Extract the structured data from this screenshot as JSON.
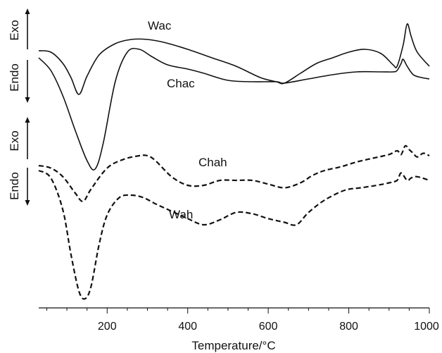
{
  "chart_data": {
    "type": "line",
    "xlabel": "Temperature/°C",
    "ylabel": "",
    "xlim": [
      30,
      1000
    ],
    "xticks": [
      200,
      400,
      600,
      800,
      1000
    ],
    "direction_labels": {
      "upper": {
        "exo": "Exo",
        "endo": "Endo"
      },
      "lower": {
        "exo": "Exo",
        "endo": "Endo"
      }
    },
    "series": [
      {
        "name": "Wac",
        "style": "solid",
        "panel": "upper",
        "x": [
          30,
          60,
          90,
          110,
          130,
          150,
          180,
          220,
          260,
          300,
          340,
          400,
          460,
          520,
          580,
          620,
          640,
          680,
          720,
          760,
          800,
          840,
          880,
          910,
          920,
          935,
          945,
          955,
          970,
          1000
        ],
        "y": [
          1.0,
          0.95,
          0.55,
          0.05,
          -0.55,
          0.1,
          0.85,
          1.25,
          1.4,
          1.4,
          1.3,
          1.05,
          0.75,
          0.45,
          0.05,
          -0.1,
          -0.15,
          0.2,
          0.55,
          0.75,
          0.95,
          1.05,
          0.9,
          0.5,
          0.45,
          1.2,
          1.95,
          1.5,
          0.95,
          0.45
        ]
      },
      {
        "name": "Chac",
        "style": "solid",
        "panel": "upper",
        "x": [
          30,
          60,
          90,
          120,
          150,
          170,
          190,
          220,
          250,
          280,
          310,
          350,
          400,
          440,
          500,
          560,
          620,
          640,
          700,
          760,
          820,
          880,
          910,
          920,
          930,
          935,
          945,
          960,
          980,
          1000
        ],
        "y": [
          0.75,
          0.3,
          -0.6,
          -1.8,
          -2.9,
          -3.2,
          -2.3,
          -0.1,
          0.95,
          1.05,
          0.8,
          0.5,
          0.35,
          0.2,
          -0.05,
          -0.1,
          -0.1,
          -0.15,
          0.0,
          0.15,
          0.25,
          0.25,
          0.25,
          0.3,
          0.55,
          0.7,
          0.45,
          0.15,
          0.05,
          0.0
        ]
      },
      {
        "name": "Chah",
        "style": "dashed",
        "panel": "lower",
        "x": [
          30,
          60,
          90,
          120,
          140,
          160,
          200,
          240,
          280,
          300,
          320,
          360,
          400,
          440,
          480,
          520,
          560,
          600,
          640,
          680,
          710,
          740,
          780,
          820,
          860,
          900,
          920,
          930,
          940,
          950,
          960,
          970,
          985,
          1000
        ],
        "y": [
          0.6,
          0.5,
          0.15,
          -0.5,
          -0.85,
          -0.35,
          0.5,
          0.85,
          1.0,
          1.0,
          0.8,
          0.15,
          -0.2,
          -0.2,
          0.0,
          0.0,
          0.0,
          -0.15,
          -0.3,
          -0.1,
          0.2,
          0.4,
          0.55,
          0.75,
          0.9,
          1.05,
          1.2,
          1.05,
          1.4,
          1.25,
          1.1,
          0.95,
          1.1,
          1.0
        ]
      },
      {
        "name": "Wah",
        "style": "dashed",
        "panel": "lower",
        "x": [
          30,
          60,
          90,
          110,
          130,
          145,
          160,
          180,
          200,
          230,
          260,
          290,
          320,
          360,
          400,
          440,
          480,
          520,
          560,
          600,
          640,
          670,
          700,
          740,
          790,
          830,
          870,
          900,
          920,
          930,
          945,
          955,
          970,
          1000
        ],
        "y": [
          0.4,
          0.1,
          -1.2,
          -3.0,
          -4.5,
          -4.8,
          -4.3,
          -2.6,
          -1.4,
          -0.7,
          -0.6,
          -0.7,
          -0.95,
          -1.25,
          -1.55,
          -1.8,
          -1.6,
          -1.3,
          -1.35,
          -1.55,
          -1.7,
          -1.8,
          -1.3,
          -0.8,
          -0.4,
          -0.3,
          -0.2,
          -0.1,
          0.0,
          0.3,
          0.0,
          0.1,
          0.15,
          0.0
        ]
      }
    ]
  }
}
